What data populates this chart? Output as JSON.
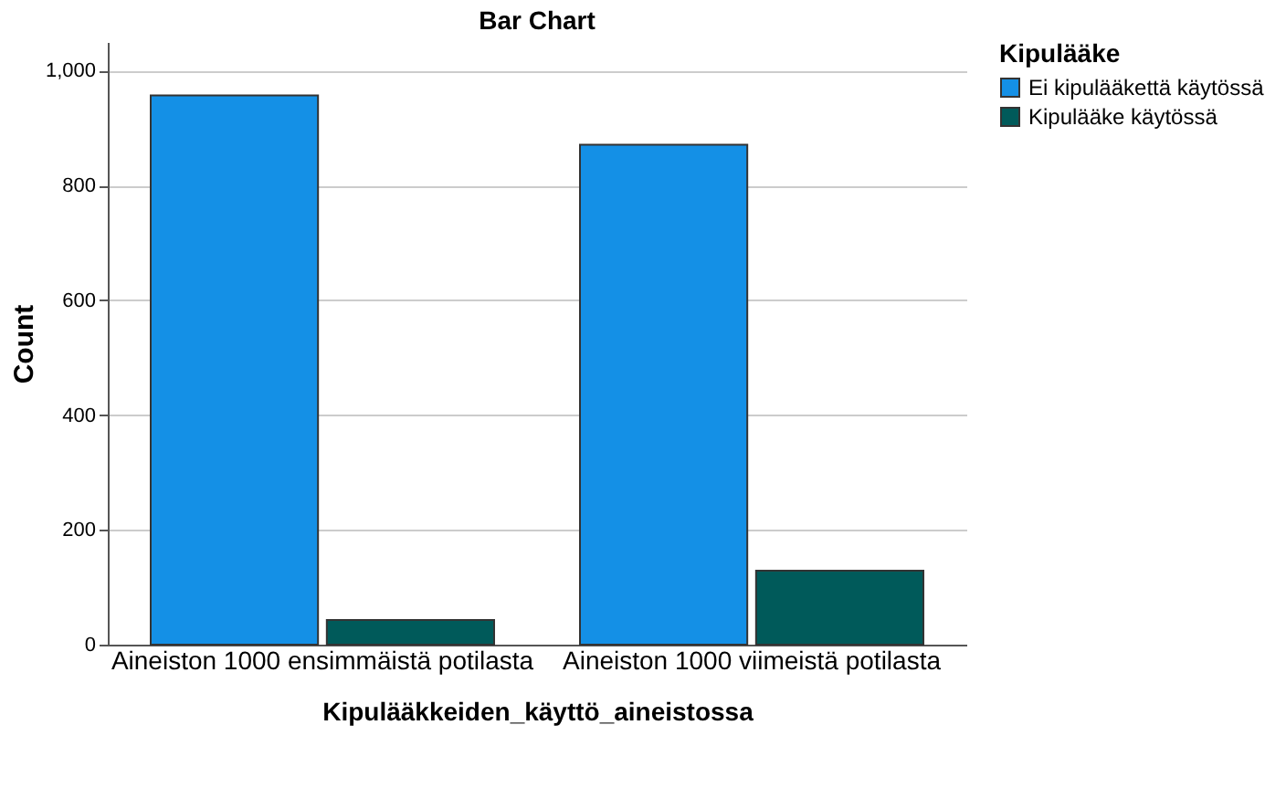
{
  "chart_data": {
    "type": "bar",
    "title": "Bar Chart",
    "xlabel": "Kipulääkkeiden_käyttö_aineistossa",
    "ylabel": "Count",
    "legend_title": "Kipulääke",
    "categories": [
      "Aineiston 1000 ensimmäistä potilasta",
      "Aineiston 1000 viimeistä potilasta"
    ],
    "series": [
      {
        "name": "Ei kipulääkettä käytössä",
        "color": "#1490e6",
        "values": [
          957,
          871
        ]
      },
      {
        "name": "Kipulääke käytössä",
        "color": "#005a5a",
        "values": [
          43,
          129
        ]
      }
    ],
    "ylim": [
      0,
      1050
    ],
    "yticks": [
      0,
      200,
      400,
      600,
      800,
      {
        "value": 1000,
        "label": "1,000"
      }
    ],
    "grid": "y",
    "legend": "top right"
  }
}
